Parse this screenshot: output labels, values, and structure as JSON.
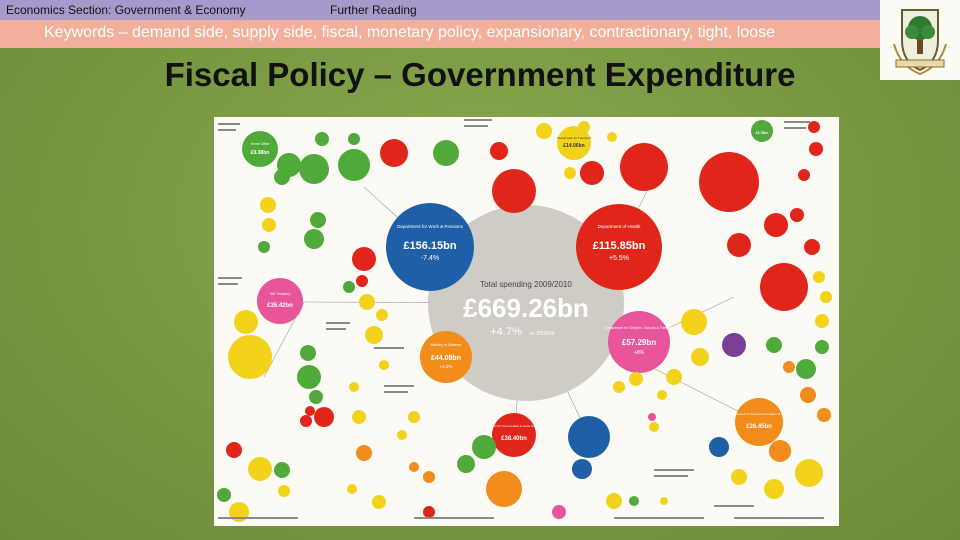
{
  "header": {
    "section_label": "Economics Section: Government & Economy",
    "further_reading_label": "Further Reading"
  },
  "keywords": "Keywords – demand side, supply side, fiscal, monetary policy, expansionary, contractionary, tight, loose",
  "slide_title": "Fiscal Policy – Government Expenditure",
  "logo": {
    "name": "school-crest-logo"
  },
  "colors": {
    "topbar": "#a69acb",
    "keyword_bar": "#f2b09c",
    "background": "#7a9a42",
    "grey_bubble": "#cfccc6",
    "dwp_blue": "#1f5fa8",
    "health_red": "#e0261b",
    "education_pink": "#e8559a",
    "defence_orange": "#f28c1b",
    "treasury_purple": "#7c3f98",
    "green": "#4faa3a",
    "yellow": "#f2d21b"
  },
  "infographic": {
    "total": {
      "caption": "Total spending 2009/2010",
      "value": "£669.26bn",
      "change": "+4.7%",
      "change_note": "on 2008/09"
    },
    "departments": [
      {
        "name": "Department for Work & Pensions",
        "value": "£156.15bn",
        "change": "-7.4%"
      },
      {
        "name": "Department of Health",
        "value": "£115.85bn",
        "change": "+5.5%"
      },
      {
        "name": "Department for Children, Schools & Families",
        "value": "£57.29bn",
        "change": "+8%"
      },
      {
        "name": "Ministry of Defence",
        "value": "£44.08bn",
        "change": "+4.3%"
      },
      {
        "name": "HM Treasury",
        "value": "£35.42bn",
        "change": ""
      },
      {
        "name": "Department for Communities & Local Government",
        "value": "£38.40bn",
        "change": ""
      },
      {
        "name": "Department for Business Innovation & Skills",
        "value": "£26.45bn",
        "change": ""
      },
      {
        "name": "Department for Transport",
        "value": "£14.06bn",
        "change": ""
      },
      {
        "name": "Home Office",
        "value": "£9.38bn",
        "change": ""
      },
      {
        "name": "Department for Environment, Food & Rural Affairs",
        "value": "£3.76bn",
        "change": ""
      }
    ]
  }
}
